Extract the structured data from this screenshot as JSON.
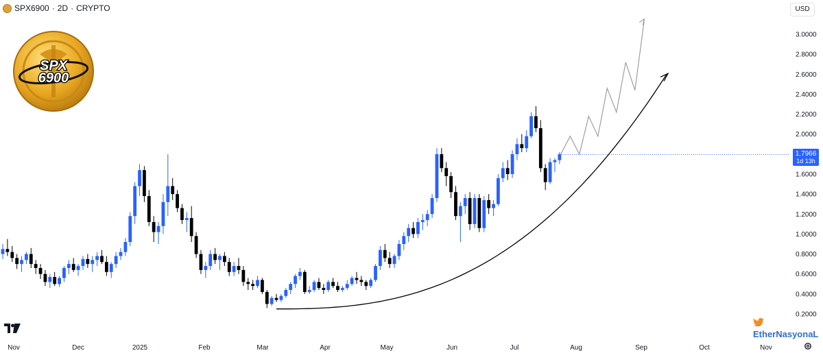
{
  "header": {
    "symbol": "SPX6900",
    "interval": "2D",
    "market": "CRYPTO",
    "separator": "·"
  },
  "currency_button": "USD",
  "price_tag": {
    "price": "1.7966",
    "countdown": "1d 13h",
    "color": "#2962ff"
  },
  "watermark": {
    "text": "EtherNasyonaL",
    "icon": "twitter-bird-icon"
  },
  "logo": {
    "text": "SPX 6900",
    "icon": "spx6900-coin-logo"
  },
  "colors": {
    "up": "#2962ff",
    "down": "#000000",
    "projection": "#9e9e9e",
    "curve": "#000000"
  },
  "chart_data": {
    "type": "candlestick",
    "title": "SPX6900 · 2D · CRYPTO",
    "y_axis": {
      "ticks": [
        "0.2000",
        "0.4000",
        "0.6000",
        "0.8000",
        "1.0000",
        "1.2000",
        "1.4000",
        "1.6000",
        "1.8000",
        "2.0000",
        "2.2000",
        "2.4000",
        "2.6000",
        "2.8000",
        "3.0000"
      ],
      "range": [
        0.1,
        3.3
      ]
    },
    "x_axis": {
      "ticks": [
        "Nov",
        "Dec",
        "2025",
        "Feb",
        "Mar",
        "Apr",
        "May",
        "Jun",
        "Jul",
        "Aug",
        "Sep",
        "Oct",
        "Nov"
      ]
    },
    "candles": [
      [
        0.8,
        0.9,
        0.75,
        0.85
      ],
      [
        0.85,
        0.95,
        0.78,
        0.82
      ],
      [
        0.82,
        0.88,
        0.72,
        0.76
      ],
      [
        0.76,
        0.8,
        0.65,
        0.7
      ],
      [
        0.7,
        0.78,
        0.62,
        0.74
      ],
      [
        0.74,
        0.82,
        0.7,
        0.8
      ],
      [
        0.8,
        0.86,
        0.66,
        0.7
      ],
      [
        0.7,
        0.74,
        0.6,
        0.66
      ],
      [
        0.66,
        0.7,
        0.55,
        0.6
      ],
      [
        0.6,
        0.64,
        0.48,
        0.52
      ],
      [
        0.52,
        0.6,
        0.46,
        0.57
      ],
      [
        0.57,
        0.62,
        0.48,
        0.5
      ],
      [
        0.5,
        0.58,
        0.47,
        0.56
      ],
      [
        0.56,
        0.68,
        0.52,
        0.66
      ],
      [
        0.66,
        0.74,
        0.6,
        0.7
      ],
      [
        0.7,
        0.76,
        0.62,
        0.64
      ],
      [
        0.64,
        0.7,
        0.58,
        0.68
      ],
      [
        0.68,
        0.78,
        0.64,
        0.75
      ],
      [
        0.75,
        0.8,
        0.66,
        0.7
      ],
      [
        0.7,
        0.78,
        0.62,
        0.74
      ],
      [
        0.74,
        0.82,
        0.68,
        0.78
      ],
      [
        0.78,
        0.84,
        0.7,
        0.72
      ],
      [
        0.72,
        0.78,
        0.58,
        0.62
      ],
      [
        0.62,
        0.72,
        0.56,
        0.7
      ],
      [
        0.7,
        0.82,
        0.66,
        0.78
      ],
      [
        0.78,
        0.86,
        0.74,
        0.82
      ],
      [
        0.82,
        0.96,
        0.78,
        0.92
      ],
      [
        0.92,
        1.22,
        0.88,
        1.18
      ],
      [
        1.18,
        1.52,
        1.1,
        1.48
      ],
      [
        1.48,
        1.7,
        1.38,
        1.64
      ],
      [
        1.64,
        1.68,
        1.32,
        1.38
      ],
      [
        1.38,
        1.44,
        1.08,
        1.12
      ],
      [
        1.12,
        1.18,
        0.92,
        1.02
      ],
      [
        1.02,
        1.12,
        0.9,
        1.08
      ],
      [
        1.08,
        1.4,
        1.0,
        1.32
      ],
      [
        1.32,
        1.8,
        1.18,
        1.48
      ],
      [
        1.48,
        1.56,
        1.34,
        1.4
      ],
      [
        1.4,
        1.44,
        1.22,
        1.26
      ],
      [
        1.26,
        1.3,
        1.1,
        1.14
      ],
      [
        1.14,
        1.22,
        1.02,
        1.16
      ],
      [
        1.16,
        1.28,
        0.92,
        0.98
      ],
      [
        0.98,
        1.02,
        0.76,
        0.8
      ],
      [
        0.8,
        0.84,
        0.6,
        0.64
      ],
      [
        0.64,
        0.72,
        0.56,
        0.68
      ],
      [
        0.68,
        0.84,
        0.64,
        0.8
      ],
      [
        0.8,
        0.86,
        0.7,
        0.74
      ],
      [
        0.74,
        0.8,
        0.64,
        0.78
      ],
      [
        0.78,
        0.82,
        0.68,
        0.72
      ],
      [
        0.72,
        0.76,
        0.58,
        0.62
      ],
      [
        0.62,
        0.72,
        0.58,
        0.68
      ],
      [
        0.68,
        0.76,
        0.6,
        0.64
      ],
      [
        0.64,
        0.68,
        0.48,
        0.52
      ],
      [
        0.52,
        0.56,
        0.44,
        0.5
      ],
      [
        0.5,
        0.54,
        0.44,
        0.48
      ],
      [
        0.48,
        0.58,
        0.46,
        0.54
      ],
      [
        0.54,
        0.56,
        0.4,
        0.42
      ],
      [
        0.42,
        0.44,
        0.26,
        0.3
      ],
      [
        0.3,
        0.38,
        0.28,
        0.36
      ],
      [
        0.36,
        0.4,
        0.32,
        0.34
      ],
      [
        0.34,
        0.4,
        0.32,
        0.38
      ],
      [
        0.38,
        0.46,
        0.36,
        0.44
      ],
      [
        0.44,
        0.52,
        0.4,
        0.5
      ],
      [
        0.5,
        0.6,
        0.46,
        0.58
      ],
      [
        0.58,
        0.66,
        0.54,
        0.62
      ],
      [
        0.62,
        0.64,
        0.4,
        0.42
      ],
      [
        0.42,
        0.48,
        0.4,
        0.44
      ],
      [
        0.44,
        0.54,
        0.42,
        0.52
      ],
      [
        0.52,
        0.56,
        0.44,
        0.46
      ],
      [
        0.46,
        0.5,
        0.4,
        0.44
      ],
      [
        0.44,
        0.54,
        0.42,
        0.52
      ],
      [
        0.52,
        0.56,
        0.46,
        0.48
      ],
      [
        0.48,
        0.52,
        0.42,
        0.44
      ],
      [
        0.44,
        0.48,
        0.42,
        0.46
      ],
      [
        0.46,
        0.54,
        0.44,
        0.5
      ],
      [
        0.5,
        0.58,
        0.48,
        0.56
      ],
      [
        0.56,
        0.62,
        0.5,
        0.54
      ],
      [
        0.54,
        0.58,
        0.48,
        0.52
      ],
      [
        0.52,
        0.54,
        0.44,
        0.48
      ],
      [
        0.48,
        0.56,
        0.46,
        0.54
      ],
      [
        0.54,
        0.7,
        0.52,
        0.68
      ],
      [
        0.68,
        0.88,
        0.64,
        0.84
      ],
      [
        0.84,
        0.9,
        0.72,
        0.76
      ],
      [
        0.76,
        0.82,
        0.66,
        0.7
      ],
      [
        0.7,
        0.8,
        0.66,
        0.78
      ],
      [
        0.78,
        0.94,
        0.74,
        0.9
      ],
      [
        0.9,
        1.02,
        0.84,
        0.98
      ],
      [
        0.98,
        1.1,
        0.92,
        1.06
      ],
      [
        1.06,
        1.12,
        0.96,
        1.0
      ],
      [
        1.0,
        1.16,
        0.96,
        1.12
      ],
      [
        1.12,
        1.2,
        1.04,
        1.14
      ],
      [
        1.14,
        1.24,
        1.08,
        1.2
      ],
      [
        1.2,
        1.4,
        1.16,
        1.36
      ],
      [
        1.36,
        1.86,
        1.32,
        1.8
      ],
      [
        1.8,
        1.86,
        1.62,
        1.66
      ],
      [
        1.66,
        1.72,
        1.48,
        1.58
      ],
      [
        1.58,
        1.62,
        1.36,
        1.42
      ],
      [
        1.42,
        1.48,
        1.14,
        1.18
      ],
      [
        1.18,
        1.32,
        0.92,
        1.28
      ],
      [
        1.28,
        1.4,
        1.2,
        1.36
      ],
      [
        1.36,
        1.42,
        1.04,
        1.1
      ],
      [
        1.1,
        1.4,
        1.06,
        1.36
      ],
      [
        1.36,
        1.4,
        1.02,
        1.06
      ],
      [
        1.06,
        1.38,
        1.02,
        1.34
      ],
      [
        1.34,
        1.4,
        1.2,
        1.26
      ],
      [
        1.26,
        1.34,
        1.18,
        1.3
      ],
      [
        1.3,
        1.6,
        1.28,
        1.56
      ],
      [
        1.56,
        1.72,
        1.52,
        1.66
      ],
      [
        1.66,
        1.74,
        1.54,
        1.6
      ],
      [
        1.6,
        1.84,
        1.56,
        1.8
      ],
      [
        1.8,
        1.96,
        1.74,
        1.9
      ],
      [
        1.9,
        2.0,
        1.82,
        1.86
      ],
      [
        1.86,
        2.04,
        1.82,
        1.98
      ],
      [
        1.98,
        2.22,
        1.96,
        2.18
      ],
      [
        2.18,
        2.28,
        2.02,
        2.06
      ],
      [
        2.06,
        2.14,
        1.62,
        1.66
      ],
      [
        1.66,
        1.7,
        1.44,
        1.52
      ],
      [
        1.52,
        1.76,
        1.5,
        1.72
      ],
      [
        1.72,
        1.76,
        1.62,
        1.74
      ],
      [
        1.74,
        1.82,
        1.7,
        1.8
      ]
    ],
    "projection": [
      [
        1.8,
        1.98
      ],
      [
        1.98,
        1.8
      ],
      [
        1.8,
        2.18
      ],
      [
        2.18,
        1.98
      ],
      [
        1.98,
        2.46
      ],
      [
        2.46,
        2.22
      ],
      [
        2.22,
        2.72
      ],
      [
        2.72,
        2.44
      ],
      [
        2.44,
        3.14
      ]
    ],
    "support_curve_end": 2.6
  }
}
